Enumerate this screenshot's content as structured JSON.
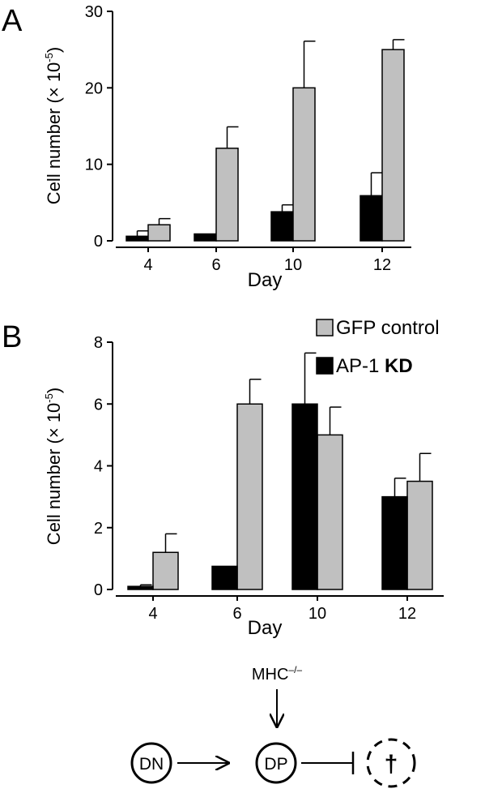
{
  "chart_data": [
    {
      "panel_label": "A",
      "type": "bar",
      "categories": [
        "4",
        "6",
        "10",
        "12"
      ],
      "xlabel": "Day",
      "ylabel": "Cell number (× 10",
      "ylabel_sup": "-5",
      "ylabel_end": ")",
      "ylim": [
        0,
        30
      ],
      "yticks": [
        "0",
        "10",
        "20",
        "30"
      ],
      "series": [
        {
          "color": "#000000",
          "values": [
            0.6,
            0.9,
            3.8,
            5.9
          ],
          "errors": [
            0.7,
            0.0,
            0.9,
            3.0
          ]
        },
        {
          "color": "#c0c0c0",
          "values": [
            2.1,
            12.1,
            20.0,
            25.0
          ],
          "errors": [
            0.8,
            2.8,
            6.1,
            1.3
          ]
        }
      ]
    },
    {
      "panel_label": "B",
      "type": "bar",
      "categories": [
        "4",
        "6",
        "10",
        "12"
      ],
      "xlabel": "Day",
      "ylabel": "Cell number (× 10",
      "ylabel_sup": "-5",
      "ylabel_end": ")",
      "ylim": [
        0,
        8
      ],
      "yticks": [
        "0",
        "2",
        "4",
        "6",
        "8"
      ],
      "legend_position": "top-right",
      "series": [
        {
          "name": "GFP control",
          "color": "#c0c0c0",
          "values": [
            1.2,
            6.0,
            5.0,
            3.5
          ],
          "errors": [
            0.6,
            0.8,
            0.9,
            0.9
          ]
        },
        {
          "name": "AP-1 KD",
          "name_prefix": "AP-1 ",
          "name_bold": "KD",
          "color": "#000000",
          "values": [
            0.1,
            0.75,
            6.0,
            3.0
          ],
          "errors": [
            0.05,
            0.0,
            1.65,
            0.6
          ]
        }
      ]
    }
  ],
  "diagram": {
    "mhc_label": "MHC",
    "mhc_sup": "–/–",
    "node_dn": "DN",
    "node_dp": "DP",
    "death_symbol": "†"
  }
}
